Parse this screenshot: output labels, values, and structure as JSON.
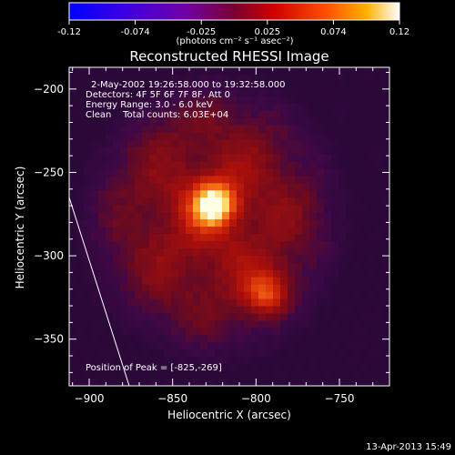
{
  "chart_data": {
    "type": "heatmap",
    "title": "Reconstructed RHESSI Image",
    "xlabel": "Heliocentric X (arcsec)",
    "ylabel": "Heliocentric Y (arcsec)",
    "xlim": [
      -912,
      -720
    ],
    "ylim": [
      -378,
      -187
    ],
    "x_ticks": [
      -900,
      -850,
      -800,
      -750
    ],
    "y_ticks": [
      -200,
      -250,
      -300,
      -350
    ],
    "colorbar": {
      "ticks": [
        "-0.12",
        "-0.074",
        "-0.025",
        "0.025",
        "0.074",
        "0.12"
      ],
      "range": [
        -0.12,
        0.12
      ],
      "unit_label": "(photons cm⁻² s⁻¹ asec⁻²)"
    },
    "annotations": [
      "2-May-2002 19:26:58.000 to 19:32:58.000",
      "Detectors: 4F 5F 6F 7F 8F, Att 0",
      "Energy Range: 3.0 - 6.0 keV",
      "Clean    Total counts: 6.03E+04"
    ],
    "peak_label": "Position of Peak = [-825,-269]",
    "peaks": [
      {
        "x": -825,
        "y": -269,
        "value": 0.12
      },
      {
        "x": -794,
        "y": -322,
        "value": 0.085
      }
    ],
    "limb_line": [
      [
        -912,
        -265
      ],
      [
        -876,
        -378
      ]
    ],
    "footer": "13-Apr-2013 15:49"
  },
  "colors": {
    "background": "#000000",
    "text": "#ffffff",
    "colormap": [
      "#0000ff",
      "#5000c8",
      "#7a0080",
      "#c00000",
      "#ff3000",
      "#ff9000",
      "#ffff80",
      "#ffffff"
    ]
  }
}
